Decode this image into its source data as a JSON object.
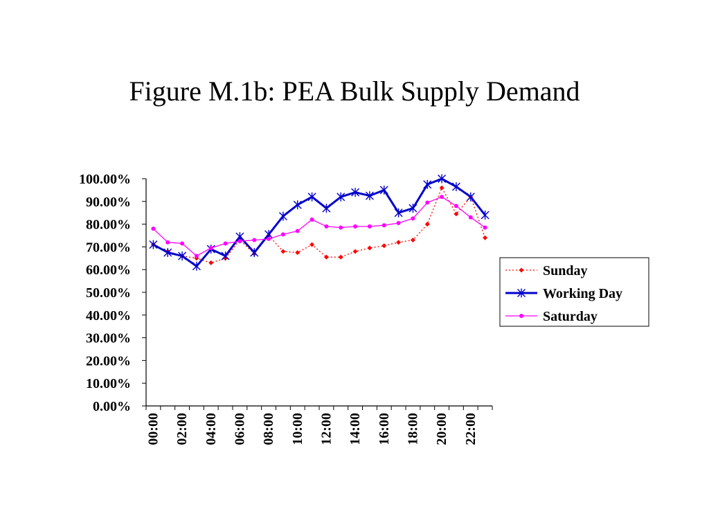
{
  "title": "Figure M.1b: PEA Bulk Supply Demand",
  "chart_data": {
    "type": "line",
    "title": "Figure M.1b: PEA Bulk Supply Demand",
    "xlabel": "",
    "ylabel": "",
    "x": [
      "00:00",
      "01:00",
      "02:00",
      "03:00",
      "04:00",
      "05:00",
      "06:00",
      "07:00",
      "08:00",
      "09:00",
      "10:00",
      "11:00",
      "12:00",
      "13:00",
      "14:00",
      "15:00",
      "16:00",
      "17:00",
      "18:00",
      "19:00",
      "20:00",
      "21:00",
      "22:00",
      "23:00"
    ],
    "x_tick_labels": [
      "00:00",
      "02:00",
      "04:00",
      "06:00",
      "08:00",
      "10:00",
      "12:00",
      "14:00",
      "16:00",
      "18:00",
      "20:00",
      "22:00"
    ],
    "y_tick_labels": [
      "0.00%",
      "10.00%",
      "20.00%",
      "30.00%",
      "40.00%",
      "50.00%",
      "60.00%",
      "70.00%",
      "80.00%",
      "90.00%",
      "100.00%"
    ],
    "ylim": [
      0,
      100
    ],
    "grid": false,
    "legend_position": "right",
    "series": [
      {
        "name": "Sunday",
        "color": "#ff0000",
        "line_style": "dotted",
        "marker": "diamond",
        "values": [
          71,
          68,
          66,
          65,
          63,
          65,
          73,
          67,
          75,
          68,
          67.5,
          71,
          65.5,
          65.5,
          68,
          69.5,
          70.5,
          72,
          73,
          80,
          96,
          84.5,
          92,
          74
        ]
      },
      {
        "name": "Working Day",
        "color": "#0000cc",
        "line_style": "solid",
        "marker": "asterisk",
        "values": [
          71,
          67.5,
          66,
          61.5,
          69,
          66,
          74.5,
          67.5,
          75.5,
          83.5,
          88.5,
          92,
          87,
          92,
          94,
          92.5,
          95,
          85,
          87,
          97.5,
          100,
          96.5,
          92,
          84
        ]
      },
      {
        "name": "Saturday",
        "color": "#ff00ff",
        "line_style": "solid",
        "marker": "circle",
        "values": [
          78,
          72,
          71.5,
          66,
          69.5,
          71.5,
          72.5,
          73,
          73.5,
          75.5,
          77,
          82,
          79,
          78.5,
          79,
          79,
          79.5,
          80.5,
          82.5,
          89.5,
          92,
          88,
          83,
          78.5
        ]
      }
    ]
  }
}
